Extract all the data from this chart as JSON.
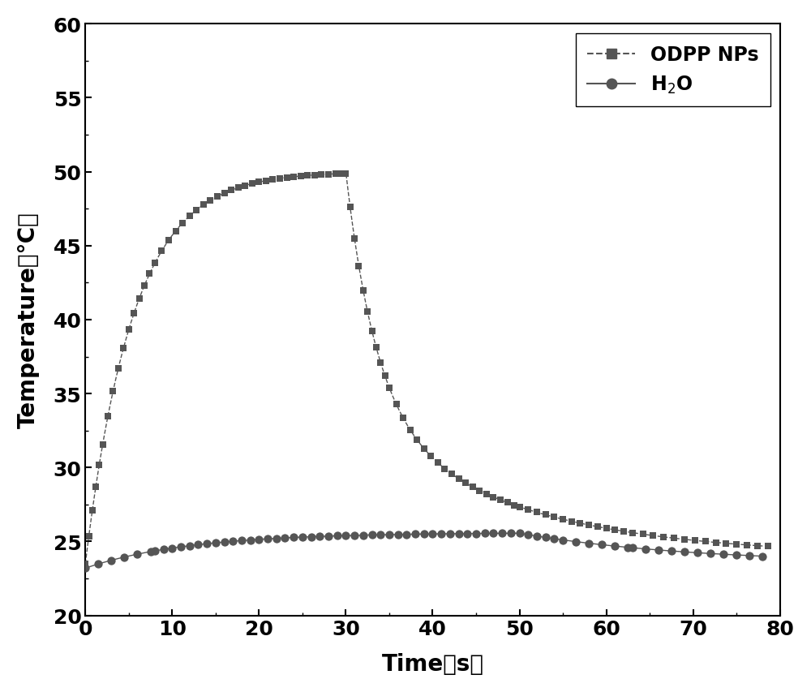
{
  "title": "",
  "xlabel": "Time （s）",
  "ylabel": "Temperature （℃）",
  "xlim": [
    0,
    80
  ],
  "ylim": [
    20,
    60
  ],
  "xticks": [
    0,
    10,
    20,
    30,
    40,
    50,
    60,
    70,
    80
  ],
  "yticks": [
    20,
    25,
    30,
    35,
    40,
    45,
    50,
    55,
    60
  ],
  "line_color": "#555555",
  "background_color": "#ffffff",
  "label_fontsize": 20,
  "tick_fontsize": 18,
  "legend_fontsize": 17,
  "odpp_start": 23.5,
  "odpp_peak": 50.0,
  "odpp_peak_time": 30.0,
  "odpp_end": 24.0,
  "water_start": 23.2,
  "water_peak": 25.6,
  "water_peak_time": 45.0,
  "water_end": 23.5
}
